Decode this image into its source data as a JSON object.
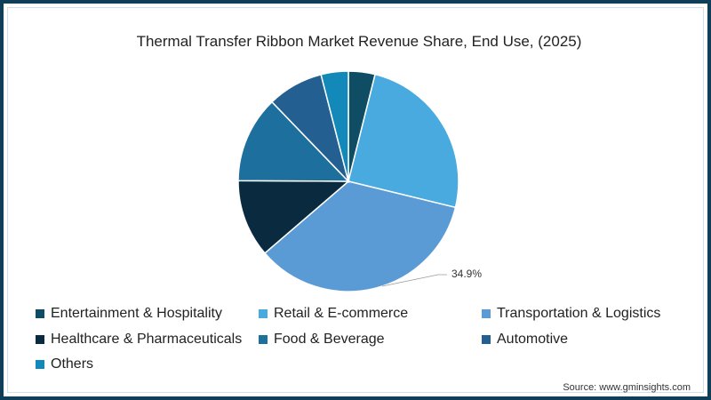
{
  "title": "Thermal Transfer Ribbon Market Revenue Share, End Use, (2025)",
  "source": "Source: www.gminsights.com",
  "highlight_label": "34.9%",
  "colors": {
    "border": "#0f3f58",
    "entertainment": "#0e4d64",
    "retail": "#48aadf",
    "transportation": "#5b9bd5",
    "healthcare": "#0a2b3f",
    "food": "#1d6f9e",
    "automotive": "#245f92",
    "others": "#1289b8"
  },
  "legend": [
    {
      "label": "Entertainment & Hospitality",
      "color": "#0e4d64"
    },
    {
      "label": "Retail & E-commerce",
      "color": "#48aadf"
    },
    {
      "label": "Transportation & Logistics",
      "color": "#5b9bd5"
    },
    {
      "label": "Healthcare & Pharmaceuticals",
      "color": "#0a2b3f"
    },
    {
      "label": "Food & Beverage",
      "color": "#1d6f9e"
    },
    {
      "label": "Automotive",
      "color": "#245f92"
    },
    {
      "label": "Others",
      "color": "#1289b8"
    }
  ],
  "chart_data": {
    "type": "pie",
    "title": "Thermal Transfer Ribbon Market Revenue Share, End Use, (2025)",
    "categories": [
      "Entertainment & Hospitality",
      "Retail & E-commerce",
      "Transportation & Logistics",
      "Healthcare & Pharmaceuticals",
      "Food & Beverage",
      "Automotive",
      "Others"
    ],
    "values": [
      3.9,
      24.9,
      34.9,
      11.4,
      12.7,
      8.2,
      4.0
    ],
    "unit": "%",
    "data_labels": [
      {
        "category": "Transportation & Logistics",
        "label": "34.9%"
      }
    ],
    "legend_position": "bottom",
    "start_angle": "12 o'clock, clockwise",
    "source": "Source: www.gminsights.com"
  }
}
